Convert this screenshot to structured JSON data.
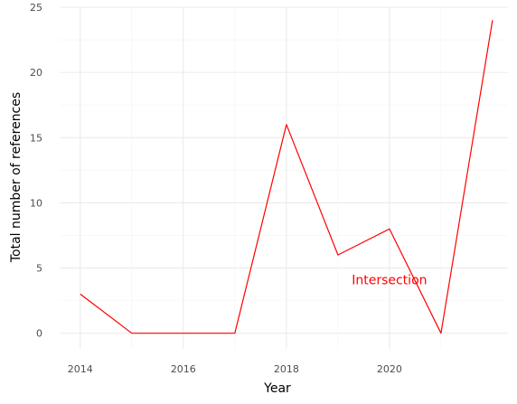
{
  "chart_data": {
    "type": "line",
    "xlabel": "Year",
    "ylabel": "Total number of references",
    "x_ticks": [
      2014,
      2016,
      2018,
      2020
    ],
    "y_ticks": [
      0,
      5,
      10,
      15,
      20,
      25
    ],
    "xlim": [
      2013.6,
      2022.3
    ],
    "ylim": [
      -1.2,
      25
    ],
    "grid": true,
    "annotation": {
      "text": "Intersection",
      "x": 2020,
      "y": 4.1
    },
    "series": [
      {
        "color": "#ff0000",
        "x": [
          2014,
          2015,
          2016,
          2017,
          2018,
          2019,
          2020,
          2021,
          2022
        ],
        "y": [
          3,
          0,
          0,
          0,
          16,
          6,
          8,
          0,
          24
        ]
      }
    ]
  }
}
